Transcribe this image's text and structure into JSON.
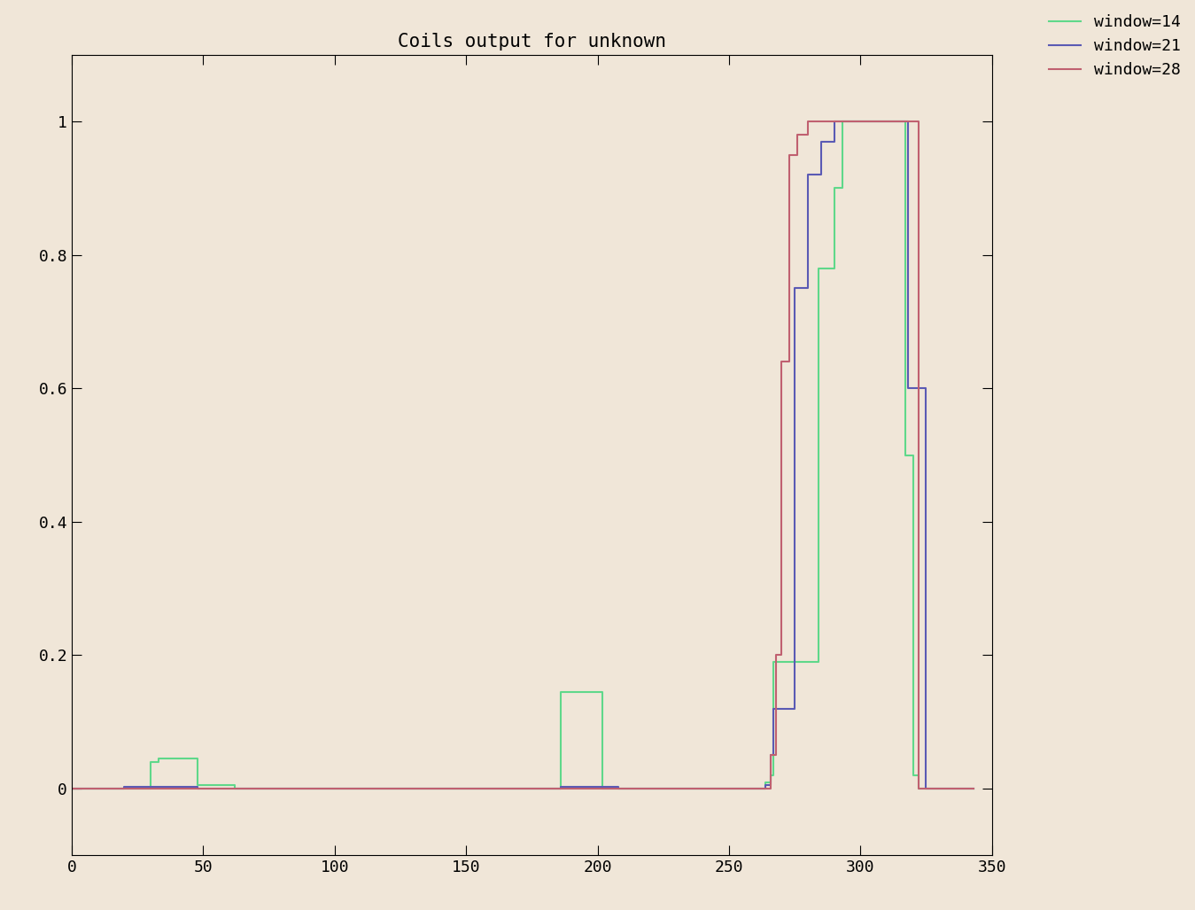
{
  "chart_data": {
    "type": "step",
    "title": "Coils output for unknown",
    "x": [
      0,
      20,
      30,
      33,
      48,
      62,
      186,
      202,
      208,
      264,
      266,
      267,
      268,
      270,
      273,
      275,
      276,
      280,
      284,
      285,
      290,
      293,
      317,
      318,
      320,
      321,
      322,
      324,
      325,
      343
    ],
    "series": [
      {
        "name": "window=14",
        "color": "#5fd88a",
        "line_style": "solid",
        "values": [
          0,
          0,
          0.04,
          0.045,
          0.005,
          0,
          0.145,
          0,
          0,
          0.01,
          0.02,
          0.19,
          0.19,
          0.19,
          0.19,
          0.19,
          0.19,
          0.19,
          0.78,
          0.78,
          0.9,
          1,
          0.5,
          0.5,
          0.02,
          0.02,
          0,
          0,
          0,
          0
        ]
      },
      {
        "name": "window=21",
        "color": "#5a5ab4",
        "line_style": "solid",
        "values": [
          0,
          0.003,
          0.003,
          0.003,
          0,
          0,
          0.003,
          0.003,
          0,
          0.005,
          0.05,
          0.12,
          0.12,
          0.12,
          0.12,
          0.75,
          0.75,
          0.92,
          0.92,
          0.97,
          1,
          1,
          1,
          0.6,
          0.6,
          0.6,
          0.6,
          0.6,
          0,
          0
        ]
      },
      {
        "name": "window=28",
        "color": "#c06070",
        "line_style": "solid",
        "values": [
          0,
          0,
          0,
          0,
          0,
          0,
          0,
          0,
          0,
          0,
          0.05,
          0.05,
          0.2,
          0.64,
          0.95,
          0.95,
          0.98,
          1,
          1,
          1,
          1,
          1,
          1,
          1,
          1,
          1,
          0,
          0,
          0,
          0
        ]
      }
    ],
    "xlim": [
      0,
      350
    ],
    "xticks": [
      0,
      50,
      100,
      150,
      200,
      250,
      300,
      350
    ],
    "ylim": [
      -0.1,
      1.1
    ],
    "yticks": [
      0,
      0.2,
      0.4,
      0.6,
      0.8,
      1
    ],
    "grid": false,
    "legend": "upper right"
  }
}
